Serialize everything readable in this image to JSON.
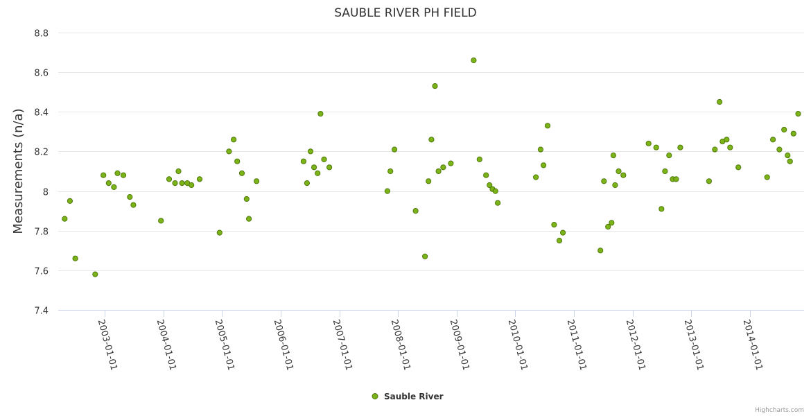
{
  "chart_data": {
    "type": "scatter",
    "title": "SAUBLE RIVER PH FIELD",
    "xlabel": "",
    "ylabel": "Measurements (n/a)",
    "ylim": [
      7.4,
      8.8
    ],
    "yticks": [
      "7.4",
      "7.6",
      "7.8",
      "8",
      "8.2",
      "8.4",
      "8.6",
      "8.8"
    ],
    "xlim": [
      2002.21,
      2014.92
    ],
    "xticks": [
      {
        "label": "2003-01-01",
        "year": 2003
      },
      {
        "label": "2004-01-01",
        "year": 2004
      },
      {
        "label": "2005-01-01",
        "year": 2005
      },
      {
        "label": "2006-01-01",
        "year": 2006
      },
      {
        "label": "2007-01-01",
        "year": 2007
      },
      {
        "label": "2008-01-01",
        "year": 2008
      },
      {
        "label": "2009-01-01",
        "year": 2009
      },
      {
        "label": "2010-01-01",
        "year": 2010
      },
      {
        "label": "2011-01-01",
        "year": 2011
      },
      {
        "label": "2012-01-01",
        "year": 2012
      },
      {
        "label": "2013-01-01",
        "year": 2013
      },
      {
        "label": "2014-01-01",
        "year": 2014
      }
    ],
    "grid": true,
    "legend": "bottom-center",
    "series": [
      {
        "name": "Sauble River",
        "color": "#7cb319",
        "x": [
          2002.32,
          2002.41,
          2002.5,
          2002.84,
          2002.98,
          2003.07,
          2003.16,
          2003.22,
          2003.32,
          2003.43,
          2003.49,
          2003.96,
          2004.1,
          2004.2,
          2004.26,
          2004.32,
          2004.41,
          2004.48,
          2004.62,
          2004.96,
          2005.12,
          2005.2,
          2005.26,
          2005.34,
          2005.42,
          2005.46,
          2005.59,
          2006.39,
          2006.45,
          2006.51,
          2006.57,
          2006.63,
          2006.68,
          2006.74,
          2006.83,
          2007.82,
          2007.87,
          2007.94,
          2008.3,
          2008.46,
          2008.52,
          2008.57,
          2008.63,
          2008.69,
          2008.77,
          2008.9,
          2009.29,
          2009.39,
          2009.5,
          2009.56,
          2009.61,
          2009.66,
          2009.7,
          2010.35,
          2010.43,
          2010.48,
          2010.55,
          2010.66,
          2010.75,
          2010.81,
          2011.45,
          2011.51,
          2011.58,
          2011.64,
          2011.67,
          2011.7,
          2011.76,
          2011.84,
          2012.27,
          2012.4,
          2012.49,
          2012.55,
          2012.62,
          2012.68,
          2012.74,
          2012.81,
          2013.3,
          2013.4,
          2013.48,
          2013.53,
          2013.6,
          2013.66,
          2013.8,
          2014.29,
          2014.39,
          2014.5,
          2014.58,
          2014.64,
          2014.68,
          2014.74,
          2014.82
        ],
        "values": [
          7.86,
          7.95,
          7.66,
          7.58,
          8.08,
          8.04,
          8.02,
          8.09,
          8.08,
          7.97,
          7.93,
          7.85,
          8.06,
          8.04,
          8.1,
          8.04,
          8.04,
          8.03,
          8.06,
          7.79,
          8.2,
          8.26,
          8.15,
          8.09,
          7.96,
          7.86,
          8.05,
          8.15,
          8.04,
          8.2,
          8.12,
          8.09,
          8.39,
          8.16,
          8.12,
          8.0,
          8.1,
          8.21,
          7.9,
          7.67,
          8.05,
          8.26,
          8.53,
          8.1,
          8.12,
          8.14,
          8.66,
          8.16,
          8.08,
          8.03,
          8.01,
          8.0,
          7.94,
          8.07,
          8.21,
          8.13,
          8.33,
          7.83,
          7.75,
          7.79,
          7.7,
          8.05,
          7.82,
          7.84,
          8.18,
          8.03,
          8.1,
          8.08,
          8.24,
          8.22,
          7.91,
          8.1,
          8.18,
          8.06,
          8.06,
          8.22,
          8.05,
          8.21,
          8.45,
          8.25,
          8.26,
          8.22,
          8.12,
          8.07,
          8.26,
          8.21,
          8.31,
          8.18,
          8.15,
          8.29,
          8.39
        ]
      }
    ]
  },
  "credits": "Highcharts.com"
}
